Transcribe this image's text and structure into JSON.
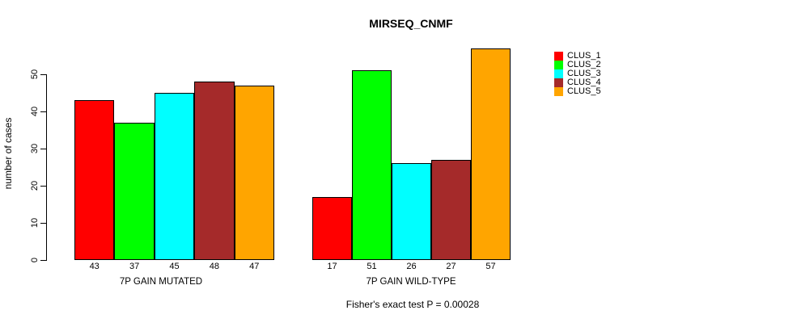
{
  "title": "MIRSEQ_CNMF",
  "chart_data": {
    "type": "bar",
    "title": "MIRSEQ_CNMF",
    "ylabel": "number of cases",
    "xlabel": "",
    "ylim": [
      0,
      57
    ],
    "yticks": [
      0,
      10,
      20,
      30,
      40,
      50
    ],
    "grid": false,
    "legend_position": "top-right",
    "clusters": [
      "CLUS_1",
      "CLUS_2",
      "CLUS_3",
      "CLUS_4",
      "CLUS_5"
    ],
    "colors": [
      "#FF0000",
      "#00FF00",
      "#00FFFF",
      "#A52A2A",
      "#FFA500"
    ],
    "groups": [
      {
        "label": "7P GAIN MUTATED",
        "values": [
          43,
          37,
          45,
          48,
          47
        ]
      },
      {
        "label": "7P GAIN WILD-TYPE",
        "values": [
          17,
          51,
          26,
          27,
          57
        ]
      }
    ],
    "annotation": "Fisher's exact test P = 0.00028"
  },
  "legend": {
    "items": [
      {
        "label": "CLUS_1",
        "color": "#FF0000"
      },
      {
        "label": "CLUS_2",
        "color": "#00FF00"
      },
      {
        "label": "CLUS_3",
        "color": "#00FFFF"
      },
      {
        "label": "CLUS_4",
        "color": "#A52A2A"
      },
      {
        "label": "CLUS_5",
        "color": "#FFA500"
      }
    ]
  }
}
